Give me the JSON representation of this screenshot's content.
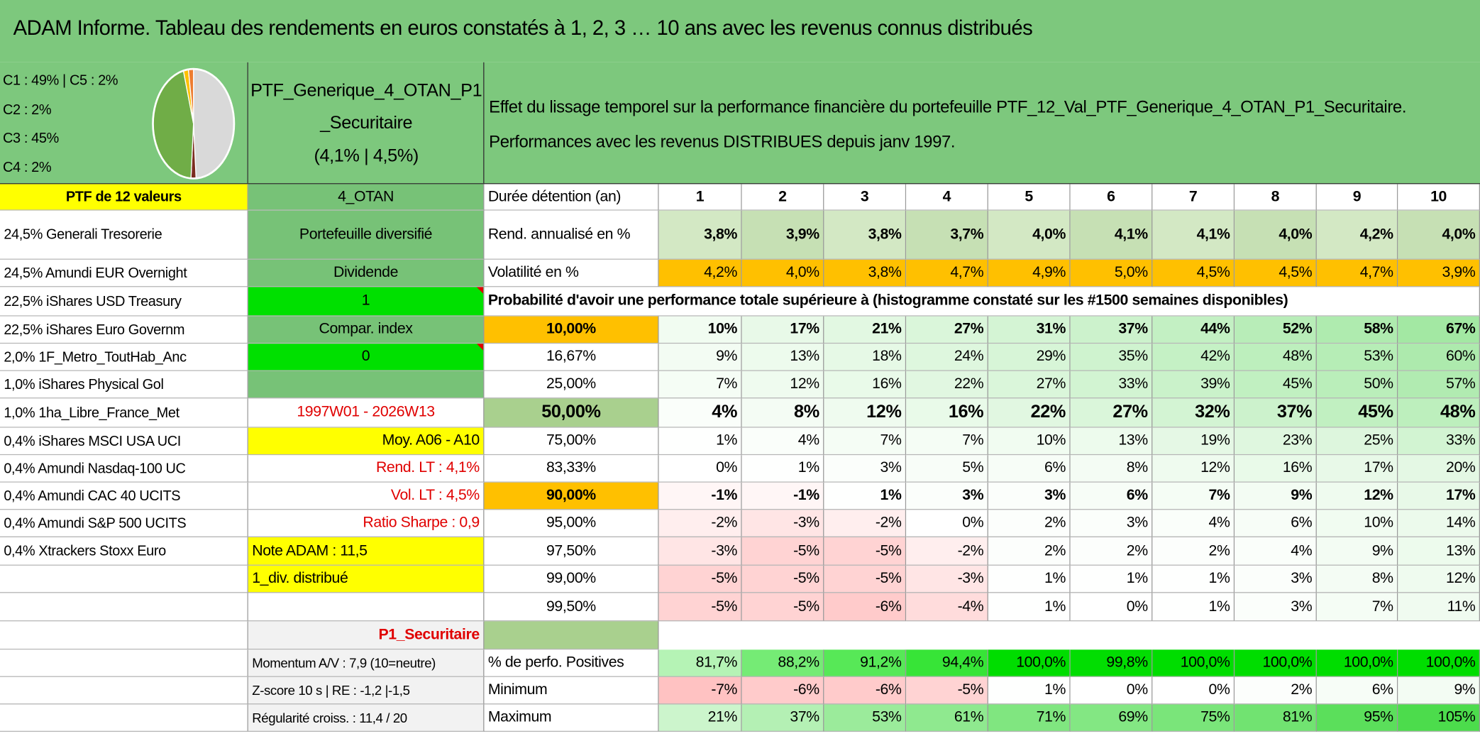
{
  "title": "ADAM Informe. Tableau des rendements en euros constatés à 1, 2, 3 … 10 ans avec les revenus connus distribués",
  "allocation": [
    "C1 : 49% | C5 : 2%",
    "C2 : 2%",
    "C3 : 45%",
    "C4 : 2%"
  ],
  "pie": [
    {
      "value": 49,
      "color": "#d9d9d9"
    },
    {
      "value": 2,
      "color": "#7b2c1f"
    },
    {
      "value": 45,
      "color": "#70ad47"
    },
    {
      "value": 2,
      "color": "#ffc000"
    },
    {
      "value": 2,
      "color": "#ed7d31"
    }
  ],
  "portfolio_header": [
    "PTF_Generique_4_OTAN_P1",
    "_Securitaire",
    "(4,1% | 4,5%)"
  ],
  "description": [
    "Effet du lissage temporel sur la performance financière du portefeuille PTF_12_Val_PTF_Generique_4_OTAN_P1_Securitaire.",
    "Performances avec les revenus DISTRIBUES depuis janv 1997."
  ],
  "holdings_header": "PTF de 12 valeurs",
  "holdings": [
    "24,5% Generali Tresorerie",
    "24,5% Amundi EUR Overnight",
    "22,5% iShares USD Treasury",
    "22,5% iShares Euro Governm",
    "2,0% 1F_Metro_ToutHab_Anc",
    "1,0% iShares Physical Gol",
    "1,0% 1ha_Libre_France_Met",
    "0,4% iShares MSCI USA UCI",
    "0,4% Amundi Nasdaq-100 UC",
    "0,4% Amundi CAC 40 UCITS",
    "0,4% Amundi S&P 500 UCITS",
    "0,4% Xtrackers Stoxx Euro"
  ],
  "side_panel": [
    "4_OTAN",
    "Portefeuille diversifié",
    "Dividende",
    "1",
    "Compar. index",
    "0",
    null,
    "1997W01 - 2026W13",
    "Moy. A06 - A10",
    "Rend. LT : 4,1%",
    "Vol. LT : 4,5%",
    "Ratio Sharpe : 0,9",
    "Note ADAM : 11,5",
    "1_div. distribué",
    null,
    "P1_Securitaire",
    "Momentum A/V : 7,9 (10=neutre)",
    "Z-score 10 s | RE : -1,2 |-1,5",
    "Régularité croiss. : 11,4 / 20"
  ],
  "table": {
    "duration_label": "Durée détention (an)",
    "durations": [
      1,
      2,
      3,
      4,
      5,
      6,
      7,
      8,
      9,
      10
    ],
    "rend_label": "Rend. annualisé en %",
    "rend": [
      "3,8%",
      "3,9%",
      "3,8%",
      "3,7%",
      "4,0%",
      "4,1%",
      "4,1%",
      "4,0%",
      "4,2%",
      "4,0%"
    ],
    "vol_label": "Volatilité en %",
    "vol": [
      "4,2%",
      "4,0%",
      "3,8%",
      "4,7%",
      "4,9%",
      "5,0%",
      "4,5%",
      "4,5%",
      "4,7%",
      "3,9%"
    ],
    "prob_label": "Probabilité d'avoir une performance totale supérieure à (histogramme constaté sur les #1500 semaines disponibles)",
    "percentiles": [
      {
        "level": "10,00%",
        "values": [
          "10%",
          "17%",
          "21%",
          "27%",
          "31%",
          "37%",
          "44%",
          "52%",
          "58%",
          "67%"
        ]
      },
      {
        "level": "16,67%",
        "values": [
          "9%",
          "13%",
          "18%",
          "24%",
          "29%",
          "35%",
          "42%",
          "48%",
          "53%",
          "60%"
        ]
      },
      {
        "level": "25,00%",
        "values": [
          "7%",
          "12%",
          "16%",
          "22%",
          "27%",
          "33%",
          "39%",
          "45%",
          "50%",
          "57%"
        ]
      },
      {
        "level": "50,00%",
        "values": [
          "4%",
          "8%",
          "12%",
          "16%",
          "22%",
          "27%",
          "32%",
          "37%",
          "45%",
          "48%"
        ]
      },
      {
        "level": "75,00%",
        "values": [
          "1%",
          "4%",
          "7%",
          "7%",
          "10%",
          "13%",
          "19%",
          "23%",
          "25%",
          "33%"
        ]
      },
      {
        "level": "83,33%",
        "values": [
          "0%",
          "1%",
          "3%",
          "5%",
          "6%",
          "8%",
          "12%",
          "16%",
          "17%",
          "20%"
        ]
      },
      {
        "level": "90,00%",
        "values": [
          "-1%",
          "-1%",
          "1%",
          "3%",
          "3%",
          "6%",
          "7%",
          "9%",
          "12%",
          "17%"
        ]
      },
      {
        "level": "95,00%",
        "values": [
          "-2%",
          "-3%",
          "-2%",
          "0%",
          "2%",
          "3%",
          "4%",
          "6%",
          "10%",
          "14%"
        ]
      },
      {
        "level": "97,50%",
        "values": [
          "-3%",
          "-5%",
          "-5%",
          "-2%",
          "2%",
          "2%",
          "2%",
          "4%",
          "9%",
          "13%"
        ]
      },
      {
        "level": "99,00%",
        "values": [
          "-5%",
          "-5%",
          "-5%",
          "-3%",
          "1%",
          "1%",
          "1%",
          "3%",
          "8%",
          "12%"
        ]
      },
      {
        "level": "99,50%",
        "values": [
          "-5%",
          "-5%",
          "-6%",
          "-4%",
          "1%",
          "0%",
          "1%",
          "3%",
          "7%",
          "11%"
        ]
      }
    ],
    "positive_label": "% de perfo. Positives",
    "positive": [
      "81,7%",
      "88,2%",
      "91,2%",
      "94,4%",
      "100,0%",
      "99,8%",
      "100,0%",
      "100,0%",
      "100,0%",
      "100,0%"
    ],
    "min_label": "Minimum",
    "min": [
      "-7%",
      "-6%",
      "-6%",
      "-5%",
      "1%",
      "0%",
      "0%",
      "2%",
      "6%",
      "9%"
    ],
    "max_label": "Maximum",
    "max": [
      "21%",
      "37%",
      "53%",
      "61%",
      "71%",
      "69%",
      "75%",
      "81%",
      "95%",
      "105%"
    ]
  }
}
